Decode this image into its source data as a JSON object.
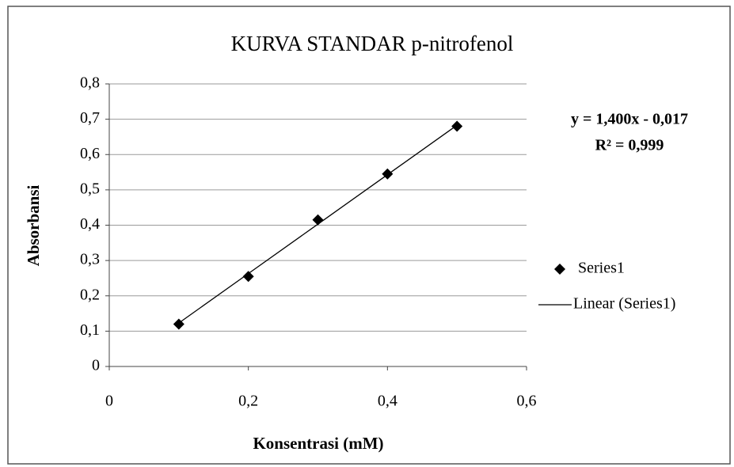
{
  "chart_data": {
    "type": "scatter",
    "title": "KURVA STANDAR p-nitrofenol",
    "x_label": "Konsentrasi (mM)",
    "y_label": "Absorbansi",
    "annotations": [
      "y = 1,400x - 0,017",
      "R² = 0,999"
    ],
    "x": [
      0.1,
      0.2,
      0.3,
      0.4,
      0.5
    ],
    "series": [
      {
        "name": "Series1",
        "color": "#000000",
        "marker": "diamond",
        "values": [
          0.12,
          0.255,
          0.415,
          0.545,
          0.68
        ]
      },
      {
        "name": "Linear (Series1)",
        "color": "#000000",
        "marker": "line",
        "values": [
          0.123,
          0.263,
          0.403,
          0.543,
          0.683
        ]
      }
    ],
    "xlim": [
      0,
      0.6
    ],
    "xticks": [
      0,
      {
        "value": 0.2,
        "label": "0,2"
      },
      {
        "value": 0.4,
        "label": "0,4"
      },
      {
        "value": 0.6,
        "label": "0,6"
      }
    ],
    "ylim": [
      0,
      0.8
    ],
    "yticks": [
      0,
      {
        "value": 0.1,
        "label": "0,1"
      },
      {
        "value": 0.2,
        "label": "0,2"
      },
      {
        "value": 0.3,
        "label": "0,3"
      },
      {
        "value": 0.4,
        "label": "0,4"
      },
      {
        "value": 0.5,
        "label": "0,5"
      },
      {
        "value": 0.6,
        "label": "0,6"
      },
      {
        "value": 0.7,
        "label": "0,7"
      },
      {
        "value": 0.8,
        "label": "0,8"
      }
    ],
    "grid": true,
    "legend": "right"
  }
}
